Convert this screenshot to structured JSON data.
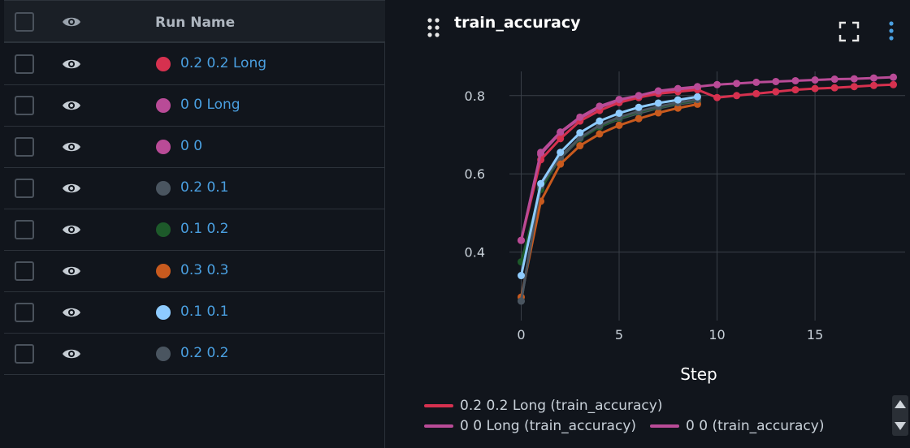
{
  "table": {
    "header": {
      "run_name_label": "Run Name"
    },
    "rows": [
      {
        "name": "0.2 0.2 Long",
        "color": "#d6314f"
      },
      {
        "name": "0 0 Long",
        "color": "#b94b97"
      },
      {
        "name": "0 0",
        "color": "#b94b97"
      },
      {
        "name": "0.2 0.1",
        "color": "#4a5560"
      },
      {
        "name": "0.1 0.2",
        "color": "#1d5a2a"
      },
      {
        "name": "0.3 0.3",
        "color": "#c85a1e"
      },
      {
        "name": "0.1 0.1",
        "color": "#8ecbff"
      },
      {
        "name": "0.2 0.2",
        "color": "#4a5560"
      }
    ]
  },
  "chart": {
    "title": "train_accuracy",
    "xlabel": "Step",
    "legend": [
      {
        "label": "0.2 0.2 Long (train_accuracy)",
        "color": "#d6314f"
      },
      {
        "label": "0 0 Long (train_accuracy)",
        "color": "#b94b97"
      },
      {
        "label": "0 0 (train_accuracy)",
        "color": "#b94b97"
      }
    ]
  },
  "chart_data": {
    "type": "line",
    "title": "train_accuracy",
    "xlabel": "Step",
    "ylabel": "",
    "xlim": [
      -0.6,
      19.6
    ],
    "ylim": [
      0.225,
      0.895
    ],
    "xticks": [
      0,
      5,
      10,
      15
    ],
    "yticks": [
      0.4,
      0.6,
      0.8
    ],
    "grid": true,
    "series": [
      {
        "name": "0.2 0.2 Long",
        "color": "#d6314f",
        "x": [
          0,
          1,
          2,
          3,
          4,
          5,
          6,
          7,
          8,
          9,
          10,
          11,
          12,
          13,
          14,
          15,
          16,
          17,
          18,
          19
        ],
        "y": [
          0.43,
          0.636,
          0.69,
          0.735,
          0.762,
          0.782,
          0.795,
          0.805,
          0.81,
          0.815,
          0.795,
          0.8,
          0.805,
          0.81,
          0.815,
          0.818,
          0.82,
          0.823,
          0.826,
          0.828
        ]
      },
      {
        "name": "0 0 Long",
        "color": "#b94b97",
        "x": [
          0,
          1,
          2,
          3,
          4,
          5,
          6,
          7,
          8,
          9,
          10,
          11,
          12,
          13,
          14,
          15,
          16,
          17,
          18,
          19
        ],
        "y": [
          0.43,
          0.655,
          0.707,
          0.745,
          0.773,
          0.79,
          0.8,
          0.812,
          0.818,
          0.823,
          0.828,
          0.831,
          0.834,
          0.836,
          0.838,
          0.84,
          0.842,
          0.843,
          0.845,
          0.847
        ]
      },
      {
        "name": "0 0",
        "color": "#b94b97",
        "x": [
          0,
          1,
          2,
          3,
          4,
          5,
          6,
          7,
          8,
          9
        ],
        "y": [
          0.43,
          0.65,
          0.705,
          0.742,
          0.77,
          0.787,
          0.798,
          0.81,
          0.816,
          0.82
        ]
      },
      {
        "name": "0.2 0.1",
        "color": "#4a5560",
        "x": [
          0,
          1,
          2,
          3,
          4,
          5,
          6,
          7,
          8,
          9
        ],
        "y": [
          0.275,
          0.565,
          0.64,
          0.69,
          0.72,
          0.74,
          0.755,
          0.768,
          0.778,
          0.785
        ]
      },
      {
        "name": "0.1 0.2",
        "color": "#1d5a2a",
        "x": [
          0,
          1,
          2,
          3,
          4,
          5,
          6,
          7,
          8,
          9
        ],
        "y": [
          0.375,
          0.56,
          0.645,
          0.69,
          0.72,
          0.742,
          0.758,
          0.77,
          0.78,
          0.788
        ]
      },
      {
        "name": "0.3 0.3",
        "color": "#c85a1e",
        "x": [
          0,
          1,
          2,
          3,
          4,
          5,
          6,
          7,
          8,
          9
        ],
        "y": [
          0.285,
          0.53,
          0.625,
          0.672,
          0.702,
          0.724,
          0.741,
          0.756,
          0.768,
          0.778
        ]
      },
      {
        "name": "0.1 0.1",
        "color": "#8ecbff",
        "x": [
          0,
          1,
          2,
          3,
          4,
          5,
          6,
          7,
          8,
          9
        ],
        "y": [
          0.34,
          0.575,
          0.655,
          0.705,
          0.735,
          0.755,
          0.77,
          0.781,
          0.789,
          0.797
        ]
      },
      {
        "name": "0.2 0.2",
        "color": "#4a5560",
        "x": [
          0,
          1,
          2,
          3,
          4,
          5,
          6,
          7,
          8,
          9
        ],
        "y": [
          0.275,
          0.57,
          0.645,
          0.692,
          0.724,
          0.745,
          0.76,
          0.772,
          0.782,
          0.79
        ]
      }
    ]
  }
}
